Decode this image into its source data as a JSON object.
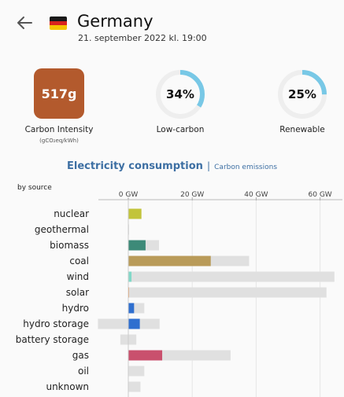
{
  "header": {
    "zone_name": "Germany",
    "datetime": "21. september 2022 kl. 19:00"
  },
  "metrics": {
    "carbon_intensity": {
      "value": "517g",
      "label": "Carbon Intensity",
      "unit": "(gCO₂eq/kWh)",
      "color": "#b35a2d"
    },
    "low_carbon": {
      "value": "34%",
      "fraction": 0.34,
      "label": "Low-carbon"
    },
    "renewable": {
      "value": "25%",
      "fraction": 0.25,
      "label": "Renewable"
    }
  },
  "tabs": {
    "active": "Electricity consumption",
    "separator": "|",
    "other": "Carbon emissions"
  },
  "section_label": "by source",
  "colors": {
    "ring_fill": "#78c8e6",
    "ring_track": "#eeeeee",
    "capacity": "#e0e0e0",
    "accent": "#3d6fa3"
  },
  "chart_data": {
    "type": "bar",
    "x_unit": "GW",
    "xlim": [
      -10,
      65
    ],
    "ticks": [
      0,
      20,
      40,
      60
    ],
    "tick_labels": [
      "0 GW",
      "20 GW",
      "40 GW",
      "60 GW"
    ],
    "categories": [
      "nuclear",
      "geothermal",
      "biomass",
      "coal",
      "wind",
      "solar",
      "hydro",
      "hydro storage",
      "battery storage",
      "gas",
      "oil",
      "unknown"
    ],
    "series": [
      {
        "role": "production",
        "values": [
          4.1,
          0,
          5.4,
          25.8,
          1.0,
          0.1,
          1.8,
          3.6,
          0,
          10.6,
          0,
          0
        ],
        "colors": [
          "#c2c43a",
          "#c2c43a",
          "#3d8a78",
          "#b99b59",
          "#82d8c8",
          "#f0a060",
          "#2f6fcf",
          "#2f6fcf",
          "#888888",
          "#c9506d",
          "#888888",
          "#888888"
        ]
      },
      {
        "role": "capacity",
        "min": [
          0,
          0,
          0,
          0,
          0,
          0,
          0,
          -9.5,
          -2.5,
          0,
          0,
          0
        ],
        "max": [
          4.1,
          0.05,
          9.6,
          37.8,
          64.5,
          62.0,
          5.0,
          9.8,
          2.5,
          32.0,
          5.0,
          3.8
        ]
      }
    ]
  }
}
